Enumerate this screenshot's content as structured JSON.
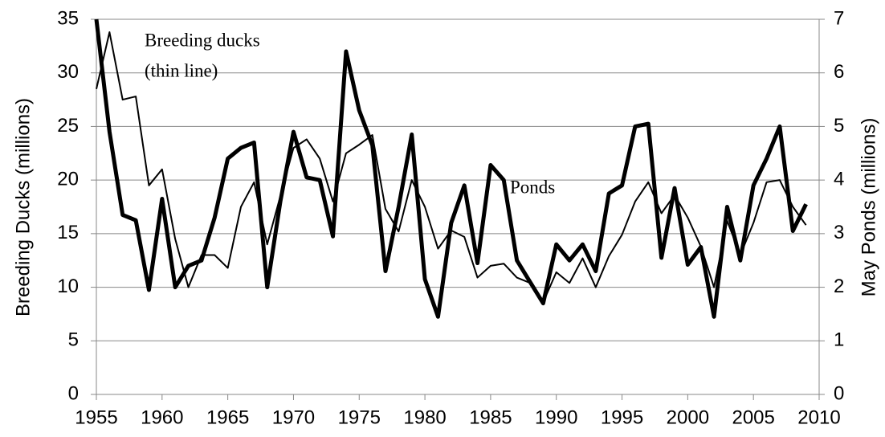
{
  "chart_data": {
    "type": "line",
    "y_label": "Breeding Ducks (millions)",
    "y2_label": "May Ponds (millions)",
    "annotations": [
      "Breeding ducks",
      "(thin line)",
      "Ponds"
    ],
    "x": [
      1955,
      1956,
      1957,
      1958,
      1959,
      1960,
      1961,
      1962,
      1963,
      1964,
      1965,
      1966,
      1967,
      1968,
      1969,
      1970,
      1971,
      1972,
      1973,
      1974,
      1975,
      1976,
      1977,
      1978,
      1979,
      1980,
      1981,
      1982,
      1983,
      1984,
      1985,
      1986,
      1987,
      1988,
      1989,
      1990,
      1991,
      1992,
      1993,
      1994,
      1995,
      1996,
      1997,
      1998,
      1999,
      2000,
      2001,
      2002,
      2003,
      2004,
      2005,
      2006,
      2007,
      2008,
      2009
    ],
    "series": [
      {
        "name": "Breeding ducks",
        "color": "#000000",
        "width": 2,
        "values": [
          28.5,
          33.8,
          27.5,
          27.8,
          19.5,
          21,
          14.5,
          10,
          13,
          13,
          11.8,
          17.5,
          19.8,
          14,
          18.5,
          23,
          23.8,
          22,
          18,
          22.5,
          23.3,
          24.2,
          17.3,
          15.2,
          20,
          17.5,
          13.6,
          15.3,
          14.7,
          10.9,
          12,
          12.2,
          10.9,
          10.4,
          8.6,
          11.4,
          10.4,
          12.7,
          10,
          12.9,
          14.9,
          18,
          19.8,
          16.9,
          18.6,
          16.5,
          13.8,
          10,
          16.2,
          13,
          16,
          19.8,
          20,
          17.5,
          15.8
        ]
      },
      {
        "name": "Ponds",
        "color": "#000000",
        "width": 5,
        "axis": "y2",
        "values": [
          7.0,
          4.9,
          3.35,
          3.25,
          1.95,
          3.65,
          2.0,
          2.4,
          2.5,
          3.3,
          4.4,
          4.6,
          4.7,
          2.0,
          3.6,
          4.9,
          4.05,
          4.0,
          2.95,
          6.4,
          5.3,
          4.65,
          2.3,
          3.5,
          4.85,
          2.15,
          1.45,
          3.2,
          3.9,
          2.45,
          4.28,
          4.0,
          2.5,
          2.1,
          1.7,
          2.8,
          2.5,
          2.8,
          2.3,
          3.75,
          3.9,
          5.0,
          5.05,
          2.55,
          3.85,
          2.42,
          2.75,
          1.45,
          3.5,
          2.5,
          3.9,
          4.4,
          5.0,
          3.05,
          3.55
        ]
      }
    ],
    "xlim": [
      1955,
      2010
    ],
    "xticks": [
      1955,
      1960,
      1965,
      1970,
      1975,
      1980,
      1985,
      1990,
      1995,
      2000,
      2005,
      2010
    ],
    "ylim": [
      0,
      35
    ],
    "yticks": [
      0,
      5,
      10,
      15,
      20,
      25,
      30,
      35
    ],
    "y2lim": [
      0,
      7
    ],
    "y2ticks": [
      0,
      1,
      2,
      3,
      4,
      5,
      6,
      7
    ],
    "grid": true
  }
}
